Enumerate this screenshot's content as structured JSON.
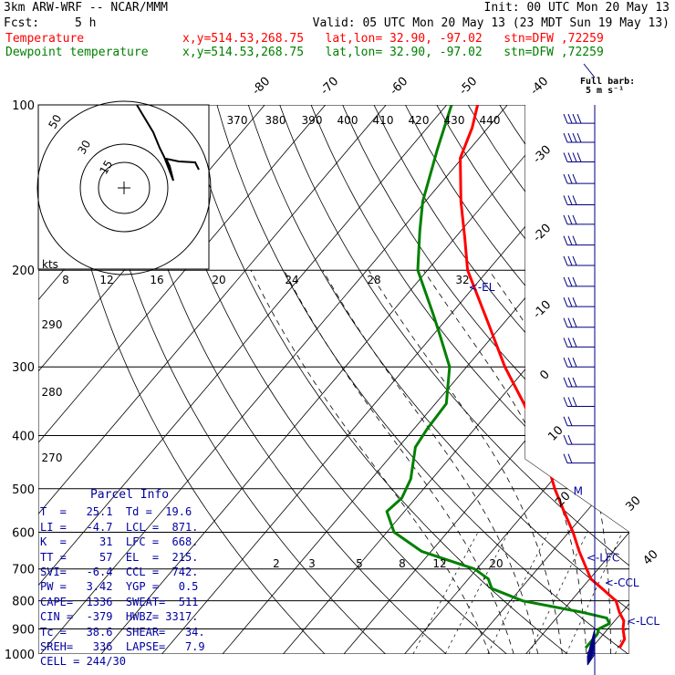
{
  "header": {
    "model": "3km ARW-WRF -- NCAR/MMM",
    "init": "Init: 00 UTC Mon 20 May 13",
    "fcst_label": "Fcst:",
    "fcst_value": "5 h",
    "valid": "Valid: 05 UTC Mon 20 May 13 (23 MDT Sun 19 May 13)",
    "temp_label": "Temperature",
    "temp_info": "x,y=514.53,268.75   lat,lon= 32.90, -97.02   stn=DFW ,72259",
    "dew_label": "Dewpoint temperature",
    "dew_info": "x,y=514.53,268.75   lat,lon= 32.90, -97.02   stn=DFW ,72259",
    "barb_legend_1": "Full barb:",
    "barb_legend_2": "5 m s⁻¹"
  },
  "parcel_info": {
    "title": "Parcel Info",
    "rows": [
      "T  =   25.1  Td =  19.6",
      "LI =   -4.7  LCL =  871.",
      "K  =     31  LFC =  668.",
      "TT =     57  EL  =  215.",
      "SVI=   -6.4  CCL =  742.",
      "PW =   3.42  YGP =   0.5",
      "CAPE=  1336  SWEAT=  511",
      "CIN =  -379  HWBZ= 3317.",
      "Tc =   38.6  SHEAR=   34.",
      "SREH=   336  LAPSE=   7.9",
      "CELL = 244/30"
    ]
  },
  "chart_data": {
    "type": "line",
    "title": "",
    "pressure_axis": {
      "scale": "log",
      "range": [
        1000,
        100
      ],
      "ticks": [
        100,
        200,
        300,
        400,
        500,
        600,
        700,
        800,
        900,
        1000
      ],
      "labels": [
        "100",
        "200",
        "300",
        "400",
        "500",
        "600",
        "700",
        "800",
        "900",
        "1000"
      ]
    },
    "isotherm_labels": [
      {
        "t": -80,
        "text": "-80",
        "where": "top"
      },
      {
        "t": -70,
        "text": "-70",
        "where": "top"
      },
      {
        "t": -60,
        "text": "-60",
        "where": "top"
      },
      {
        "t": -50,
        "text": "-50",
        "where": "top"
      },
      {
        "t": -40,
        "text": "-40",
        "where": "top"
      },
      {
        "t": -30,
        "text": "-30",
        "where": "right",
        "p": 160
      },
      {
        "t": -20,
        "text": "-20",
        "where": "right",
        "p": 225
      },
      {
        "t": -10,
        "text": "-10",
        "where": "right",
        "p": 290
      },
      {
        "t": 0,
        "text": "0",
        "where": "right",
        "p": 335
      },
      {
        "t": 10,
        "text": "10",
        "where": "right",
        "p": 420
      },
      {
        "t": 20,
        "text": "20",
        "where": "right",
        "p": 492
      },
      {
        "t": 30,
        "text": "30",
        "where": "right",
        "p": 570
      },
      {
        "t": 40,
        "text": "40",
        "where": "right",
        "p": 640
      }
    ],
    "theta_labels": [
      "370",
      "380",
      "390",
      "400",
      "410",
      "420",
      "430",
      "440",
      "290",
      "280",
      "270"
    ],
    "mixing_ratio_labels": [
      "2",
      "3",
      "5",
      "8",
      "12",
      "20"
    ],
    "hodograph": {
      "ring_labels": [
        "50",
        "30",
        "15"
      ],
      "kts_label": "kts",
      "speed_labels": [
        "8",
        "12",
        "16",
        "20",
        "24",
        "28",
        "32"
      ]
    },
    "series": [
      {
        "name": "Temperature",
        "color": "#ff0000",
        "points": [
          {
            "p": 975,
            "t": 24.6
          },
          {
            "p": 940,
            "t": 24.2
          },
          {
            "p": 900,
            "t": 22.5
          },
          {
            "p": 870,
            "t": 21.5
          },
          {
            "p": 840,
            "t": 19.6
          },
          {
            "p": 800,
            "t": 17.4
          },
          {
            "p": 760,
            "t": 13.4
          },
          {
            "p": 730,
            "t": 10.2
          },
          {
            "p": 700,
            "t": 8.1
          },
          {
            "p": 650,
            "t": 4.4
          },
          {
            "p": 600,
            "t": 0.7
          },
          {
            "p": 550,
            "t": -3.7
          },
          {
            "p": 500,
            "t": -8.4
          },
          {
            "p": 450,
            "t": -13.1
          },
          {
            "p": 400,
            "t": -18.7
          },
          {
            "p": 350,
            "t": -25.4
          },
          {
            "p": 300,
            "t": -33.7
          },
          {
            "p": 250,
            "t": -42.5
          },
          {
            "p": 200,
            "t": -53.4
          },
          {
            "p": 175,
            "t": -58.3
          },
          {
            "p": 150,
            "t": -64.1
          },
          {
            "p": 125,
            "t": -70.3
          },
          {
            "p": 110,
            "t": -72.6
          },
          {
            "p": 100,
            "t": -74.9
          }
        ]
      },
      {
        "name": "Dewpoint temperature",
        "color": "#008000",
        "points": [
          {
            "p": 975,
            "t": 19.0
          },
          {
            "p": 950,
            "t": 19.0
          },
          {
            "p": 920,
            "t": 19.0
          },
          {
            "p": 900,
            "t": 18.5
          },
          {
            "p": 880,
            "t": 19.5
          },
          {
            "p": 860,
            "t": 18.3
          },
          {
            "p": 840,
            "t": 13.6
          },
          {
            "p": 800,
            "t": 2.0
          },
          {
            "p": 760,
            "t": -4.8
          },
          {
            "p": 730,
            "t": -6.7
          },
          {
            "p": 700,
            "t": -10.4
          },
          {
            "p": 650,
            "t": -21.6
          },
          {
            "p": 600,
            "t": -28.8
          },
          {
            "p": 550,
            "t": -32.9
          },
          {
            "p": 520,
            "t": -32.3
          },
          {
            "p": 480,
            "t": -33.5
          },
          {
            "p": 420,
            "t": -37.2
          },
          {
            "p": 390,
            "t": -37.8
          },
          {
            "p": 350,
            "t": -38.2
          },
          {
            "p": 300,
            "t": -42.8
          },
          {
            "p": 260,
            "t": -49.3
          },
          {
            "p": 240,
            "t": -53.0
          },
          {
            "p": 200,
            "t": -61.6
          },
          {
            "p": 170,
            "t": -66.7
          },
          {
            "p": 150,
            "t": -70.4
          },
          {
            "p": 120,
            "t": -75.4
          },
          {
            "p": 100,
            "t": -79.2
          }
        ]
      }
    ],
    "annotations": [
      {
        "text": "<-EL",
        "p": 215,
        "t": -50.8,
        "color": "#0000a0"
      },
      {
        "text": "<-LFC",
        "p": 668,
        "t": 6.5,
        "color": "#0000a0"
      },
      {
        "text": "<-CCL",
        "p": 742,
        "t": 13.0,
        "color": "#0000a0"
      },
      {
        "text": "<-LCL",
        "p": 871,
        "t": 22.0,
        "color": "#0000a0"
      },
      {
        "text": "M",
        "p": 505,
        "t": -5.0,
        "color": "#0000a0"
      }
    ],
    "wind_barbs": [
      {
        "p": 108,
        "spd": 40
      },
      {
        "p": 117,
        "spd": 40
      },
      {
        "p": 127,
        "spd": 35
      },
      {
        "p": 139,
        "spd": 30
      },
      {
        "p": 152,
        "spd": 30
      },
      {
        "p": 165,
        "spd": 30
      },
      {
        "p": 180,
        "spd": 30
      },
      {
        "p": 196,
        "spd": 30
      },
      {
        "p": 214,
        "spd": 30
      },
      {
        "p": 233,
        "spd": 30
      },
      {
        "p": 254,
        "spd": 25
      },
      {
        "p": 276,
        "spd": 25
      },
      {
        "p": 300,
        "spd": 25
      },
      {
        "p": 326,
        "spd": 25
      },
      {
        "p": 354,
        "spd": 25
      },
      {
        "p": 384,
        "spd": 20
      },
      {
        "p": 415,
        "spd": 20
      },
      {
        "p": 449,
        "spd": 20
      }
    ]
  }
}
